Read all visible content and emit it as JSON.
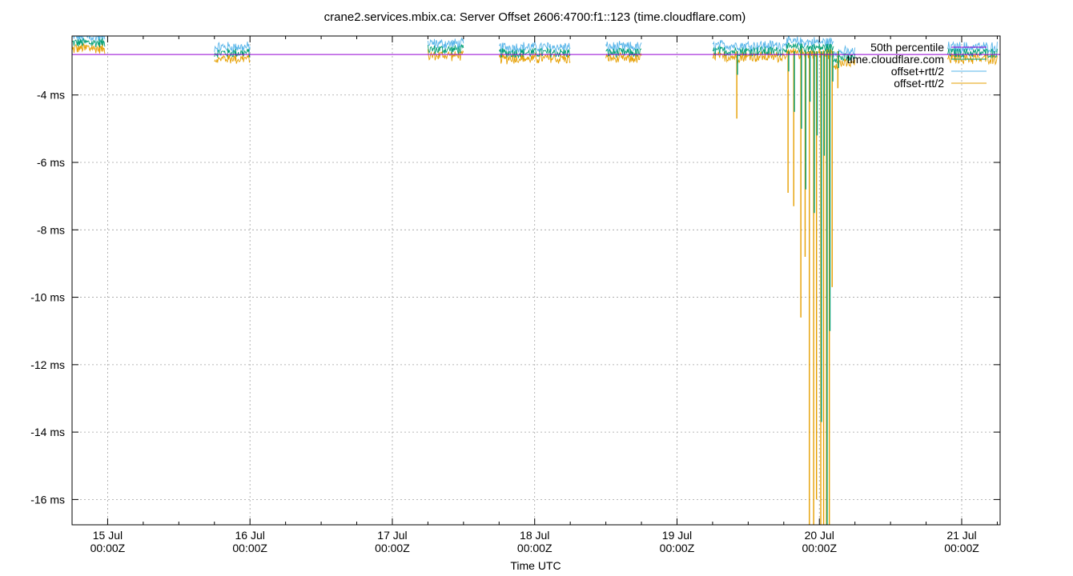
{
  "chart_data": {
    "type": "line",
    "title": "crane2.services.mbix.ca: Server Offset 2606:4700:f1::123 (time.cloudflare.com)",
    "xlabel": "Time UTC",
    "ylabel": "",
    "y_unit": "ms",
    "xlim": [
      "2024-07-14T18:00Z",
      "2024-07-21T06:30Z"
    ],
    "ylim": [
      -16.75,
      -2.25
    ],
    "grid": true,
    "legend_position": "top-right",
    "x_ticks": [
      {
        "date": "15 Jul",
        "time": "00:00Z",
        "day": 15
      },
      {
        "date": "16 Jul",
        "time": "00:00Z",
        "day": 16
      },
      {
        "date": "17 Jul",
        "time": "00:00Z",
        "day": 17
      },
      {
        "date": "18 Jul",
        "time": "00:00Z",
        "day": 18
      },
      {
        "date": "19 Jul",
        "time": "00:00Z",
        "day": 19
      },
      {
        "date": "20 Jul",
        "time": "00:00Z",
        "day": 20
      },
      {
        "date": "21 Jul",
        "time": "00:00Z",
        "day": 21
      }
    ],
    "y_ticks": [
      {
        "value": -4,
        "label": "-4 ms"
      },
      {
        "value": -6,
        "label": "-6 ms"
      },
      {
        "value": -8,
        "label": "-8 ms"
      },
      {
        "value": -10,
        "label": "-10 ms"
      },
      {
        "value": -12,
        "label": "-12 ms"
      },
      {
        "value": -14,
        "label": "-14 ms"
      },
      {
        "value": -16,
        "label": "-16 ms"
      }
    ],
    "series": [
      {
        "name": "50th percentile",
        "color": "#9400d3",
        "kind": "constant",
        "value": -2.8
      },
      {
        "name": "time.cloudflare.com",
        "color": "#009e73",
        "kind": "offset"
      },
      {
        "name": "offset+rtt/2",
        "color": "#56b4e9",
        "kind": "offset_plus"
      },
      {
        "name": "offset-rtt/2",
        "color": "#e69f00",
        "kind": "offset_minus"
      }
    ],
    "segments": [
      {
        "start_day": 14.75,
        "end_day": 14.98,
        "level": -2.45
      },
      {
        "start_day": 15.75,
        "end_day": 16.0,
        "level": -2.75
      },
      {
        "start_day": 17.25,
        "end_day": 17.5,
        "level": -2.65
      },
      {
        "start_day": 17.75,
        "end_day": 18.25,
        "level": -2.75
      },
      {
        "start_day": 18.5,
        "end_day": 18.75,
        "level": -2.75
      },
      {
        "start_day": 19.25,
        "end_day": 19.75,
        "level": -2.7
      },
      {
        "start_day": 19.75,
        "end_day": 20.1,
        "level": -2.6
      },
      {
        "start_day": 20.1,
        "end_day": 20.25,
        "level": -2.9
      },
      {
        "start_day": 20.9,
        "end_day": 21.25,
        "level": -2.75
      }
    ],
    "spikes": [
      {
        "day": 19.42,
        "offset": -3.4,
        "minus": -4.7
      },
      {
        "day": 19.78,
        "offset": -3.3,
        "minus": -6.9
      },
      {
        "day": 19.82,
        "offset": -4.5,
        "minus": -7.3
      },
      {
        "day": 19.87,
        "offset": -5.0,
        "minus": -10.6
      },
      {
        "day": 19.9,
        "offset": -6.8,
        "minus": -8.8
      },
      {
        "day": 19.93,
        "offset": -4.2,
        "minus": -16.75
      },
      {
        "day": 19.96,
        "offset": -7.5,
        "minus": -16.75
      },
      {
        "day": 19.98,
        "offset": -5.2,
        "minus": -16.0
      },
      {
        "day": 20.01,
        "offset": -13.7,
        "minus": -16.75
      },
      {
        "day": 20.03,
        "offset": -5.8,
        "minus": -16.75
      },
      {
        "day": 20.05,
        "offset": -16.75,
        "minus": -16.75
      },
      {
        "day": 20.07,
        "offset": -11.0,
        "minus": -16.75
      },
      {
        "day": 20.09,
        "offset": -3.6,
        "minus": -9.7
      },
      {
        "day": 20.13,
        "offset": -3.2,
        "minus": -3.8
      }
    ]
  }
}
